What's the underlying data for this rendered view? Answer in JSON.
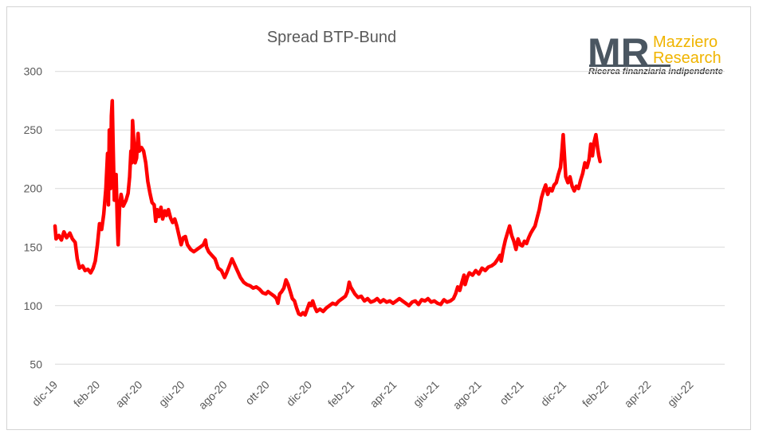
{
  "chart_data": {
    "type": "line",
    "title": "Spread BTP-Bund",
    "ylim": [
      40,
      310
    ],
    "yticks": [
      50,
      100,
      150,
      200,
      250,
      300
    ],
    "xlim": [
      0,
      31.6
    ],
    "x_tick_labels": [
      "dic-19",
      "feb-20",
      "apr-20",
      "giu-20",
      "ago-20",
      "ott-20",
      "dic-20",
      "feb-21",
      "apr-21",
      "giu-21",
      "ago-21",
      "ott-21",
      "dic-21",
      "feb-22",
      "apr-22",
      "giu-22"
    ],
    "x_tick_positions": [
      0,
      2,
      4,
      6,
      8,
      10,
      12,
      14,
      16,
      18,
      20,
      22,
      24,
      26,
      28,
      30
    ],
    "grid": "horizontal",
    "legend": "none",
    "series": [
      {
        "color": "#ff0000",
        "points": [
          [
            0.0,
            168
          ],
          [
            0.05,
            157
          ],
          [
            0.18,
            160
          ],
          [
            0.3,
            156
          ],
          [
            0.42,
            163
          ],
          [
            0.55,
            158
          ],
          [
            0.7,
            162
          ],
          [
            0.82,
            157
          ],
          [
            0.95,
            154
          ],
          [
            1.05,
            140
          ],
          [
            1.15,
            132
          ],
          [
            1.3,
            134
          ],
          [
            1.42,
            130
          ],
          [
            1.55,
            131
          ],
          [
            1.68,
            128
          ],
          [
            1.8,
            132
          ],
          [
            1.9,
            138
          ],
          [
            2.0,
            152
          ],
          [
            2.1,
            170
          ],
          [
            2.2,
            165
          ],
          [
            2.3,
            178
          ],
          [
            2.4,
            200
          ],
          [
            2.48,
            230
          ],
          [
            2.52,
            186
          ],
          [
            2.56,
            250
          ],
          [
            2.62,
            200
          ],
          [
            2.66,
            262
          ],
          [
            2.7,
            275
          ],
          [
            2.74,
            240
          ],
          [
            2.8,
            190
          ],
          [
            2.88,
            212
          ],
          [
            2.94,
            170
          ],
          [
            2.98,
            152
          ],
          [
            3.05,
            186
          ],
          [
            3.12,
            195
          ],
          [
            3.22,
            185
          ],
          [
            3.35,
            190
          ],
          [
            3.45,
            196
          ],
          [
            3.52,
            210
          ],
          [
            3.58,
            232
          ],
          [
            3.62,
            222
          ],
          [
            3.66,
            258
          ],
          [
            3.72,
            240
          ],
          [
            3.78,
            222
          ],
          [
            3.85,
            226
          ],
          [
            3.92,
            247
          ],
          [
            3.98,
            232
          ],
          [
            4.08,
            235
          ],
          [
            4.18,
            232
          ],
          [
            4.28,
            222
          ],
          [
            4.38,
            206
          ],
          [
            4.48,
            196
          ],
          [
            4.58,
            188
          ],
          [
            4.68,
            186
          ],
          [
            4.75,
            172
          ],
          [
            4.82,
            182
          ],
          [
            4.9,
            176
          ],
          [
            5.0,
            184
          ],
          [
            5.08,
            174
          ],
          [
            5.18,
            181
          ],
          [
            5.26,
            177
          ],
          [
            5.35,
            182
          ],
          [
            5.45,
            175
          ],
          [
            5.55,
            171
          ],
          [
            5.65,
            174
          ],
          [
            5.75,
            168
          ],
          [
            5.85,
            160
          ],
          [
            5.95,
            152
          ],
          [
            6.05,
            158
          ],
          [
            6.15,
            159
          ],
          [
            6.25,
            152
          ],
          [
            6.4,
            148
          ],
          [
            6.55,
            146
          ],
          [
            6.7,
            148
          ],
          [
            6.85,
            150
          ],
          [
            7.0,
            152
          ],
          [
            7.1,
            156
          ],
          [
            7.15,
            150
          ],
          [
            7.25,
            146
          ],
          [
            7.4,
            143
          ],
          [
            7.55,
            140
          ],
          [
            7.7,
            132
          ],
          [
            7.85,
            130
          ],
          [
            8.0,
            124
          ],
          [
            8.1,
            128
          ],
          [
            8.25,
            135
          ],
          [
            8.35,
            140
          ],
          [
            8.45,
            136
          ],
          [
            8.6,
            130
          ],
          [
            8.75,
            124
          ],
          [
            8.9,
            120
          ],
          [
            9.05,
            118
          ],
          [
            9.2,
            117
          ],
          [
            9.35,
            115
          ],
          [
            9.5,
            116
          ],
          [
            9.65,
            114
          ],
          [
            9.8,
            111
          ],
          [
            9.95,
            110
          ],
          [
            10.05,
            112
          ],
          [
            10.2,
            110
          ],
          [
            10.35,
            108
          ],
          [
            10.45,
            106
          ],
          [
            10.52,
            102
          ],
          [
            10.6,
            110
          ],
          [
            10.7,
            112
          ],
          [
            10.8,
            115
          ],
          [
            10.9,
            122
          ],
          [
            11.0,
            118
          ],
          [
            11.1,
            112
          ],
          [
            11.2,
            106
          ],
          [
            11.3,
            104
          ],
          [
            11.4,
            98
          ],
          [
            11.5,
            93
          ],
          [
            11.6,
            92
          ],
          [
            11.7,
            94
          ],
          [
            11.8,
            92
          ],
          [
            11.9,
            97
          ],
          [
            12.0,
            102
          ],
          [
            12.08,
            100
          ],
          [
            12.16,
            104
          ],
          [
            12.25,
            99
          ],
          [
            12.35,
            95
          ],
          [
            12.5,
            97
          ],
          [
            12.65,
            95
          ],
          [
            12.8,
            98
          ],
          [
            12.95,
            100
          ],
          [
            13.1,
            102
          ],
          [
            13.25,
            101
          ],
          [
            13.4,
            104
          ],
          [
            13.55,
            106
          ],
          [
            13.7,
            108
          ],
          [
            13.8,
            112
          ],
          [
            13.88,
            120
          ],
          [
            13.95,
            116
          ],
          [
            14.05,
            113
          ],
          [
            14.15,
            110
          ],
          [
            14.3,
            107
          ],
          [
            14.45,
            108
          ],
          [
            14.6,
            104
          ],
          [
            14.75,
            106
          ],
          [
            14.9,
            103
          ],
          [
            15.05,
            104
          ],
          [
            15.2,
            106
          ],
          [
            15.35,
            103
          ],
          [
            15.5,
            105
          ],
          [
            15.65,
            103
          ],
          [
            15.8,
            104
          ],
          [
            15.95,
            102
          ],
          [
            16.1,
            104
          ],
          [
            16.25,
            106
          ],
          [
            16.4,
            104
          ],
          [
            16.55,
            102
          ],
          [
            16.7,
            100
          ],
          [
            16.85,
            103
          ],
          [
            17.0,
            104
          ],
          [
            17.15,
            101
          ],
          [
            17.3,
            105
          ],
          [
            17.45,
            104
          ],
          [
            17.6,
            106
          ],
          [
            17.75,
            103
          ],
          [
            17.9,
            104
          ],
          [
            18.05,
            102
          ],
          [
            18.2,
            101
          ],
          [
            18.35,
            105
          ],
          [
            18.5,
            103
          ],
          [
            18.65,
            104
          ],
          [
            18.8,
            106
          ],
          [
            18.9,
            110
          ],
          [
            19.0,
            116
          ],
          [
            19.1,
            113
          ],
          [
            19.2,
            120
          ],
          [
            19.3,
            126
          ],
          [
            19.35,
            118
          ],
          [
            19.45,
            124
          ],
          [
            19.55,
            128
          ],
          [
            19.7,
            126
          ],
          [
            19.85,
            130
          ],
          [
            20.0,
            127
          ],
          [
            20.15,
            132
          ],
          [
            20.3,
            130
          ],
          [
            20.45,
            133
          ],
          [
            20.6,
            134
          ],
          [
            20.75,
            136
          ],
          [
            20.9,
            140
          ],
          [
            21.0,
            143
          ],
          [
            21.05,
            138
          ],
          [
            21.15,
            148
          ],
          [
            21.25,
            156
          ],
          [
            21.35,
            162
          ],
          [
            21.45,
            168
          ],
          [
            21.55,
            160
          ],
          [
            21.65,
            155
          ],
          [
            21.75,
            148
          ],
          [
            21.85,
            157
          ],
          [
            21.95,
            152
          ],
          [
            22.05,
            151
          ],
          [
            22.15,
            155
          ],
          [
            22.25,
            153
          ],
          [
            22.35,
            158
          ],
          [
            22.45,
            162
          ],
          [
            22.55,
            165
          ],
          [
            22.65,
            168
          ],
          [
            22.75,
            175
          ],
          [
            22.85,
            182
          ],
          [
            22.95,
            192
          ],
          [
            23.05,
            198
          ],
          [
            23.15,
            203
          ],
          [
            23.25,
            195
          ],
          [
            23.35,
            200
          ],
          [
            23.45,
            198
          ],
          [
            23.55,
            203
          ],
          [
            23.65,
            205
          ],
          [
            23.75,
            212
          ],
          [
            23.85,
            218
          ],
          [
            23.92,
            232
          ],
          [
            23.98,
            246
          ],
          [
            24.04,
            228
          ],
          [
            24.1,
            210
          ],
          [
            24.2,
            205
          ],
          [
            24.3,
            210
          ],
          [
            24.4,
            202
          ],
          [
            24.5,
            198
          ],
          [
            24.6,
            202
          ],
          [
            24.7,
            200
          ],
          [
            24.8,
            207
          ],
          [
            24.9,
            213
          ],
          [
            25.0,
            222
          ],
          [
            25.1,
            218
          ],
          [
            25.2,
            225
          ],
          [
            25.28,
            238
          ],
          [
            25.36,
            228
          ],
          [
            25.44,
            240
          ],
          [
            25.52,
            246
          ],
          [
            25.6,
            235
          ],
          [
            25.66,
            228
          ],
          [
            25.72,
            223
          ]
        ]
      }
    ]
  },
  "logo": {
    "mark": "MR",
    "name_line1": "Mazziero",
    "name_line2": "Research",
    "tagline": "Ricerca finanziaria indipendente"
  }
}
